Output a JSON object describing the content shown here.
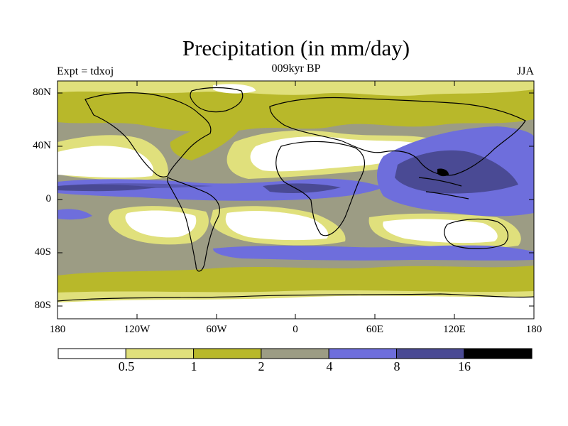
{
  "header": {
    "title": "Precipitation (in mm/day)",
    "left_label": "Expt = tdxoj",
    "center_label": "009kyr BP",
    "right_label": "JJA"
  },
  "axes": {
    "lat_ticks": [
      "80N",
      "40N",
      "0",
      "40S",
      "80S"
    ],
    "lon_ticks": [
      "180",
      "120W",
      "60W",
      "0",
      "60E",
      "120E",
      "180"
    ]
  },
  "colorbar": {
    "labels": [
      "0.5",
      "1",
      "2",
      "4",
      "8",
      "16"
    ],
    "colors": [
      "#ffffff",
      "#e0e07c",
      "#b8b82a",
      "#9c9c84",
      "#6e6edc",
      "#4a4a94",
      "#000000"
    ]
  },
  "colors": {
    "white": "#ffffff",
    "light_yellow": "#e0e07c",
    "olive": "#b8b82a",
    "gray": "#9c9c84",
    "blue": "#6e6edc",
    "dark_blue": "#4a4a94",
    "black": "#000000"
  }
}
